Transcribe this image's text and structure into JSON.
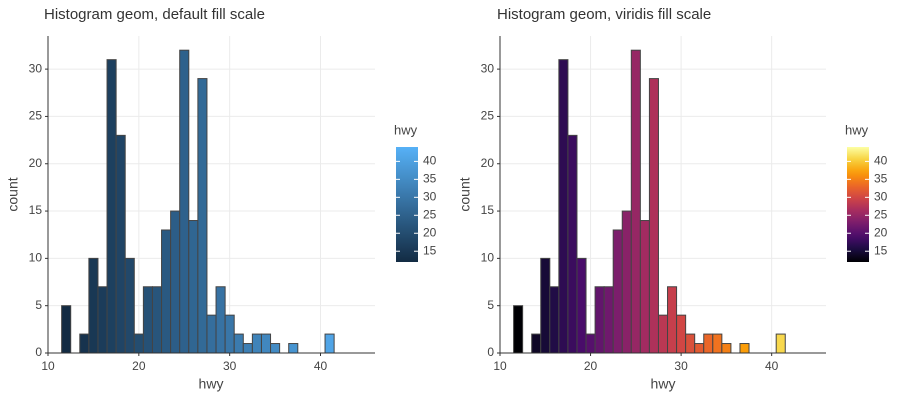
{
  "chart_data": [
    {
      "type": "bar",
      "title": "Histogram geom, default fill scale",
      "xlabel": "hwy",
      "ylabel": "count",
      "xlim": [
        10,
        46
      ],
      "ylim": [
        0,
        33.5
      ],
      "xticks": [
        10,
        20,
        30,
        40
      ],
      "yticks": [
        0,
        5,
        10,
        15,
        20,
        25,
        30
      ],
      "grid": true,
      "bin_width": 1,
      "bins": [
        {
          "x": 12,
          "count": 5
        },
        {
          "x": 14,
          "count": 2
        },
        {
          "x": 15,
          "count": 10
        },
        {
          "x": 16,
          "count": 7
        },
        {
          "x": 17,
          "count": 31
        },
        {
          "x": 18,
          "count": 23
        },
        {
          "x": 19,
          "count": 10
        },
        {
          "x": 20,
          "count": 2
        },
        {
          "x": 21,
          "count": 7
        },
        {
          "x": 22,
          "count": 7
        },
        {
          "x": 23,
          "count": 13
        },
        {
          "x": 24,
          "count": 15
        },
        {
          "x": 25,
          "count": 32
        },
        {
          "x": 26,
          "count": 14
        },
        {
          "x": 27,
          "count": 29
        },
        {
          "x": 28,
          "count": 4
        },
        {
          "x": 29,
          "count": 7
        },
        {
          "x": 30,
          "count": 4
        },
        {
          "x": 31,
          "count": 2
        },
        {
          "x": 32,
          "count": 1
        },
        {
          "x": 33,
          "count": 2
        },
        {
          "x": 34,
          "count": 2
        },
        {
          "x": 35,
          "count": 1
        },
        {
          "x": 37,
          "count": 1
        },
        {
          "x": 41,
          "count": 2
        }
      ],
      "legend": {
        "title": "hwy",
        "position": "right",
        "ticks": [
          15,
          20,
          25,
          30,
          35,
          40
        ],
        "range": [
          12,
          44
        ],
        "colors": [
          "#132B43",
          "#56B1F7"
        ]
      }
    },
    {
      "type": "bar",
      "title": "Histogram geom, viridis fill scale",
      "xlabel": "hwy",
      "ylabel": "count",
      "xlim": [
        10,
        46
      ],
      "ylim": [
        0,
        33.5
      ],
      "xticks": [
        10,
        20,
        30,
        40
      ],
      "yticks": [
        0,
        5,
        10,
        15,
        20,
        25,
        30
      ],
      "grid": true,
      "bin_width": 1,
      "bins": [
        {
          "x": 12,
          "count": 5
        },
        {
          "x": 14,
          "count": 2
        },
        {
          "x": 15,
          "count": 10
        },
        {
          "x": 16,
          "count": 7
        },
        {
          "x": 17,
          "count": 31
        },
        {
          "x": 18,
          "count": 23
        },
        {
          "x": 19,
          "count": 10
        },
        {
          "x": 20,
          "count": 2
        },
        {
          "x": 21,
          "count": 7
        },
        {
          "x": 22,
          "count": 7
        },
        {
          "x": 23,
          "count": 13
        },
        {
          "x": 24,
          "count": 15
        },
        {
          "x": 25,
          "count": 32
        },
        {
          "x": 26,
          "count": 14
        },
        {
          "x": 27,
          "count": 29
        },
        {
          "x": 28,
          "count": 4
        },
        {
          "x": 29,
          "count": 7
        },
        {
          "x": 30,
          "count": 4
        },
        {
          "x": 31,
          "count": 2
        },
        {
          "x": 32,
          "count": 1
        },
        {
          "x": 33,
          "count": 2
        },
        {
          "x": 34,
          "count": 2
        },
        {
          "x": 35,
          "count": 1
        },
        {
          "x": 37,
          "count": 1
        },
        {
          "x": 41,
          "count": 2
        }
      ],
      "legend": {
        "title": "hwy",
        "position": "right",
        "ticks": [
          15,
          20,
          25,
          30,
          35,
          40
        ],
        "range": [
          12,
          44
        ],
        "colors": [
          "#000004",
          "#1B0C41",
          "#4A0C6B",
          "#781C6D",
          "#A52C60",
          "#CF4446",
          "#ED6925",
          "#FB9B06",
          "#F7D13D",
          "#FCFFA4"
        ]
      }
    }
  ],
  "colors": {
    "gridline": "#ebebeb",
    "axis": "#333333",
    "bar_outline": "#444444"
  }
}
